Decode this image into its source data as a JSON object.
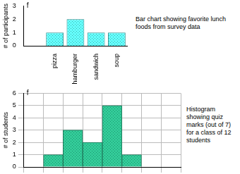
{
  "chart_data": [
    {
      "type": "bar",
      "title": "Bar chart showing favorite lunch foods from survey data",
      "y_label": "# of participants",
      "annotations": [
        "f"
      ],
      "categories": [
        null,
        "pizza",
        "hamburger",
        "sandwich",
        "soup"
      ],
      "values": [
        0,
        1,
        2,
        1,
        1
      ],
      "color": "#66ffff",
      "ylim": [
        0,
        3
      ],
      "yticks": [
        0,
        1,
        2,
        3
      ],
      "grid": false
    },
    {
      "type": "histogram",
      "title": "Histogram showing quiz marks (out of 7) for a class of 12 students",
      "y_label": "# of students",
      "annotations": [
        "f"
      ],
      "bins": [
        0,
        1,
        2,
        3,
        4,
        5,
        6,
        7,
        8
      ],
      "values": [
        0,
        1,
        3,
        2,
        5,
        1,
        0,
        0
      ],
      "color": "#33cc99",
      "xlim": [
        0,
        8
      ],
      "ylim": [
        0,
        6
      ],
      "yticks": [
        0,
        1,
        2,
        3,
        4,
        5,
        6
      ],
      "grid": true,
      "tick_labels": "y"
    }
  ]
}
